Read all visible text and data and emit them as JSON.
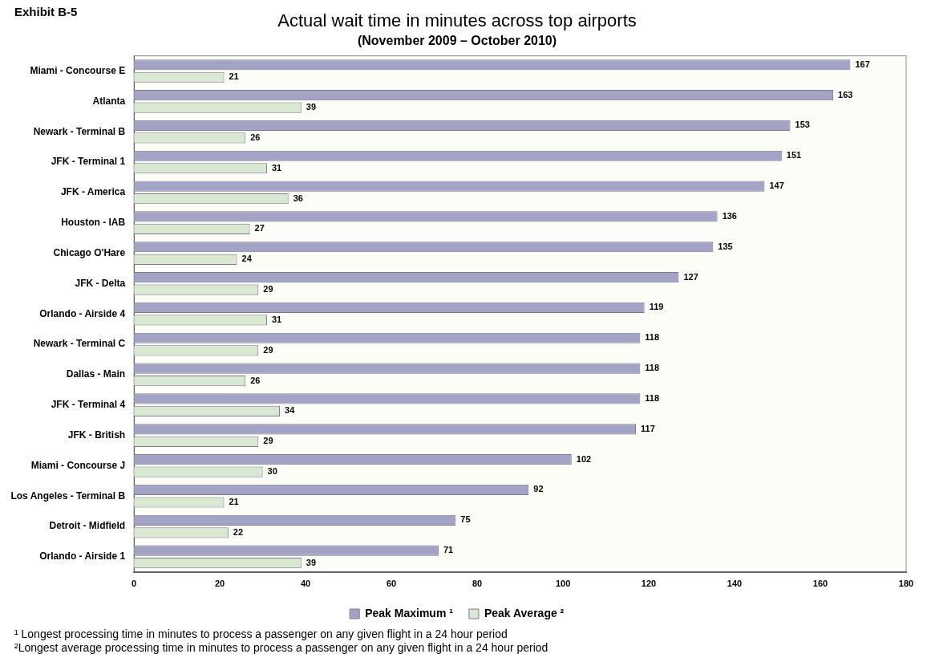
{
  "chart_data": {
    "type": "bar",
    "orientation": "horizontal",
    "title": "Actual wait time in minutes across top airports",
    "subtitle": "(November 2009 – October 2010)",
    "categories": [
      "Miami - Concourse E",
      "Atlanta",
      "Newark - Terminal B",
      "JFK - Terminal 1",
      "JFK - America",
      "Houston - IAB",
      "Chicago O'Hare",
      "JFK - Delta",
      "Orlando - Airside 4",
      "Newark - Terminal C",
      "Dallas - Main",
      "JFK - Terminal 4",
      "JFK - British",
      "Miami - Concourse J",
      "Los Angeles - Terminal B",
      "Detroit - Midfield",
      "Orlando - Airside 1"
    ],
    "series": [
      {
        "name": "Peak Maximum ¹",
        "color": "#a3a3c6",
        "values": [
          167,
          163,
          153,
          151,
          147,
          136,
          135,
          127,
          119,
          118,
          118,
          118,
          117,
          102,
          92,
          75,
          71
        ]
      },
      {
        "name": "Peak Average ²",
        "color": "#d9e8d0",
        "values": [
          21,
          39,
          26,
          31,
          36,
          27,
          24,
          29,
          31,
          29,
          26,
          34,
          29,
          30,
          21,
          22,
          39
        ]
      }
    ],
    "xlim": [
      0,
      180
    ],
    "xticks": [
      0,
      20,
      40,
      60,
      80,
      100,
      120,
      140,
      160,
      180
    ],
    "grid": false,
    "legend": "bottom",
    "data_labels": true,
    "annotations": [
      "Exhibit B-5",
      "¹ Longest processing time in minutes to process a passenger on any given flight in a 24 hour period",
      "²Longest average processing time in minutes to process a passenger on any given flight in a 24 hour period"
    ]
  }
}
